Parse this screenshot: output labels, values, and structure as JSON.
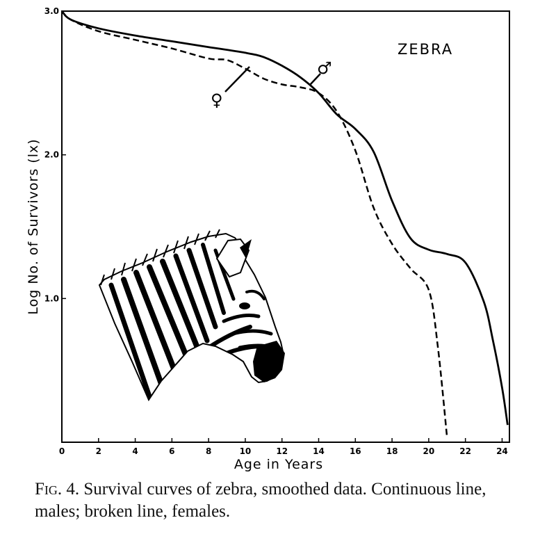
{
  "chart_data": {
    "type": "line",
    "title": "ZEBRA",
    "xlabel": "Age in Years",
    "ylabel": "Log  No. of Survivors (lx)",
    "xlim": [
      0,
      24.4
    ],
    "ylim": [
      0,
      3.0
    ],
    "x_ticks": [
      "0",
      "2",
      "4",
      "6",
      "8",
      "10",
      "12",
      "14",
      "16",
      "18",
      "20",
      "22",
      "24"
    ],
    "y_ticks": [
      {
        "value": 3.0,
        "label": "3.0"
      },
      {
        "value": 2.0,
        "label": "2.0"
      },
      {
        "value": 1.0,
        "label": "1.0"
      }
    ],
    "series": [
      {
        "name": "♂",
        "line_style": "solid",
        "x": [
          0,
          0.5,
          2,
          4,
          6,
          8,
          10,
          11,
          12,
          13,
          14,
          15,
          16,
          17,
          18,
          19,
          20,
          21,
          22,
          23,
          23.5,
          24,
          24.3
        ],
        "y": [
          3.0,
          2.94,
          2.88,
          2.83,
          2.79,
          2.75,
          2.71,
          2.68,
          2.62,
          2.54,
          2.43,
          2.28,
          2.18,
          2.02,
          1.68,
          1.42,
          1.34,
          1.31,
          1.25,
          0.98,
          0.71,
          0.38,
          0.12
        ]
      },
      {
        "name": "♀",
        "line_style": "dashed",
        "x": [
          0,
          0.5,
          2,
          4,
          6,
          8,
          9,
          10,
          11,
          12,
          13,
          14,
          15,
          16,
          17,
          18,
          19,
          20,
          20.5,
          21
        ],
        "y": [
          3.0,
          2.94,
          2.86,
          2.8,
          2.74,
          2.67,
          2.66,
          2.6,
          2.53,
          2.49,
          2.47,
          2.43,
          2.3,
          2.03,
          1.63,
          1.38,
          1.21,
          1.06,
          0.66,
          0.03
        ]
      }
    ],
    "grid": false,
    "legend": "none"
  },
  "labels": {
    "male_symbol": "♂",
    "female_symbol": "♀"
  },
  "caption": {
    "fig_label": "Fig. 4.",
    "text": " Survival curves of zebra, smoothed data. Continuous line, males; broken line, females."
  },
  "illustration": {
    "icon": "zebra-head-drawing"
  }
}
